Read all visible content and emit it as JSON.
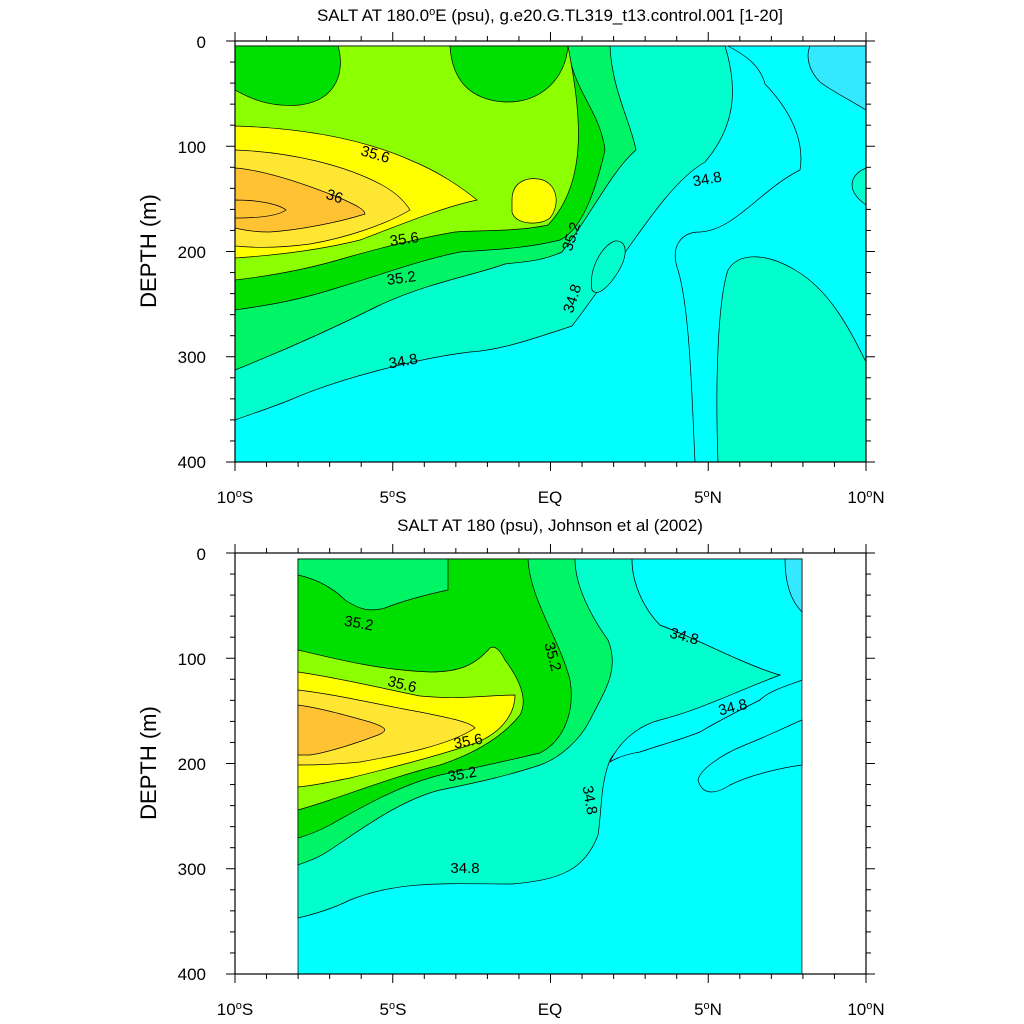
{
  "figure_type": "latitude-depth contour sections",
  "chart_data": [
    {
      "type": "contour",
      "title": "SALT AT 180.0°E (psu), g.e20.G.TL319_t13.control.001 [1-20]",
      "title_parts": {
        "pre": "SALT AT 180.0",
        "deg": "o",
        "post": "E (psu), g.e20.G.TL319_t13.control.001 [1-20]"
      },
      "ylabel": "DEPTH (m)",
      "xlim": [
        -10,
        10
      ],
      "ylim": [
        400,
        0
      ],
      "y_inverted": true,
      "yticks": [
        "0",
        "100",
        "200",
        "300",
        "400"
      ],
      "xticks": [
        {
          "num": "10",
          "deg": "o",
          "hem": "S"
        },
        {
          "num": "5",
          "deg": "o",
          "hem": "S"
        },
        {
          "num": "EQ",
          "deg": "",
          "hem": ""
        },
        {
          "num": "5",
          "deg": "o",
          "hem": "N"
        },
        {
          "num": "10",
          "deg": "o",
          "hem": "N"
        }
      ],
      "data_extent": {
        "lat": [
          -10,
          10
        ],
        "depth": [
          5,
          400
        ]
      },
      "contour_labels": [
        "35.6",
        "36",
        "35.6",
        "35.2",
        "35.2",
        "34.8",
        "34.8",
        "34.8"
      ],
      "salinity_cores": [
        {
          "lat": -9.5,
          "depth": 160,
          "max_psu": 36.2
        },
        {
          "lat": -0.5,
          "depth": 155,
          "max_psu": 35.6
        }
      ]
    },
    {
      "type": "contour",
      "title": "SALT AT 180 (psu), Johnson et al (2002)",
      "ylabel": "DEPTH (m)",
      "xlim": [
        -10,
        10
      ],
      "ylim": [
        400,
        0
      ],
      "y_inverted": true,
      "yticks": [
        "0",
        "100",
        "200",
        "300",
        "400"
      ],
      "xticks": [
        {
          "num": "10",
          "deg": "o",
          "hem": "S"
        },
        {
          "num": "5",
          "deg": "o",
          "hem": "S"
        },
        {
          "num": "EQ",
          "deg": "",
          "hem": ""
        },
        {
          "num": "5",
          "deg": "o",
          "hem": "N"
        },
        {
          "num": "10",
          "deg": "o",
          "hem": "N"
        }
      ],
      "data_extent": {
        "lat": [
          -8,
          8
        ],
        "depth": [
          5,
          400
        ]
      },
      "contour_labels": [
        "35.2",
        "35.2",
        "35.6",
        "35.6",
        "35.2",
        "34.8",
        "34.8",
        "34.8",
        "34.8"
      ],
      "salinity_cores": [
        {
          "lat": -7,
          "depth": 160,
          "max_psu": 36.0
        }
      ]
    }
  ],
  "colors": {
    "c345": "#33e8ff",
    "c348": "#00ffff",
    "c350": "#00ffcc",
    "c352": "#00f566",
    "c354": "#00e000",
    "c356": "#8cff00",
    "c358": "#ffff00",
    "c360": "#ffe633",
    "c362": "#ffc233"
  }
}
